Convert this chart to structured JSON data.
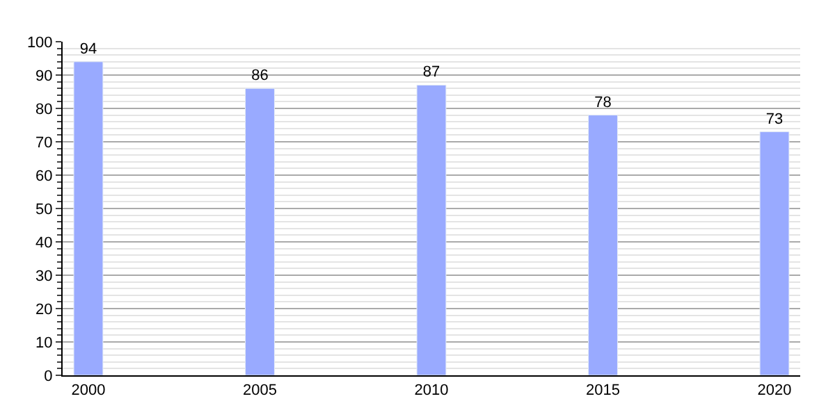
{
  "chart_data": {
    "type": "bar",
    "categories": [
      "2000",
      "2005",
      "2010",
      "2015",
      "2020"
    ],
    "values": [
      94,
      86,
      87,
      78,
      73
    ],
    "color": "#99aaff",
    "ylim": [
      0,
      100
    ],
    "yticks": [
      0,
      10,
      20,
      30,
      40,
      50,
      60,
      70,
      80,
      90,
      100
    ],
    "grid": "y",
    "data_labels": true
  }
}
